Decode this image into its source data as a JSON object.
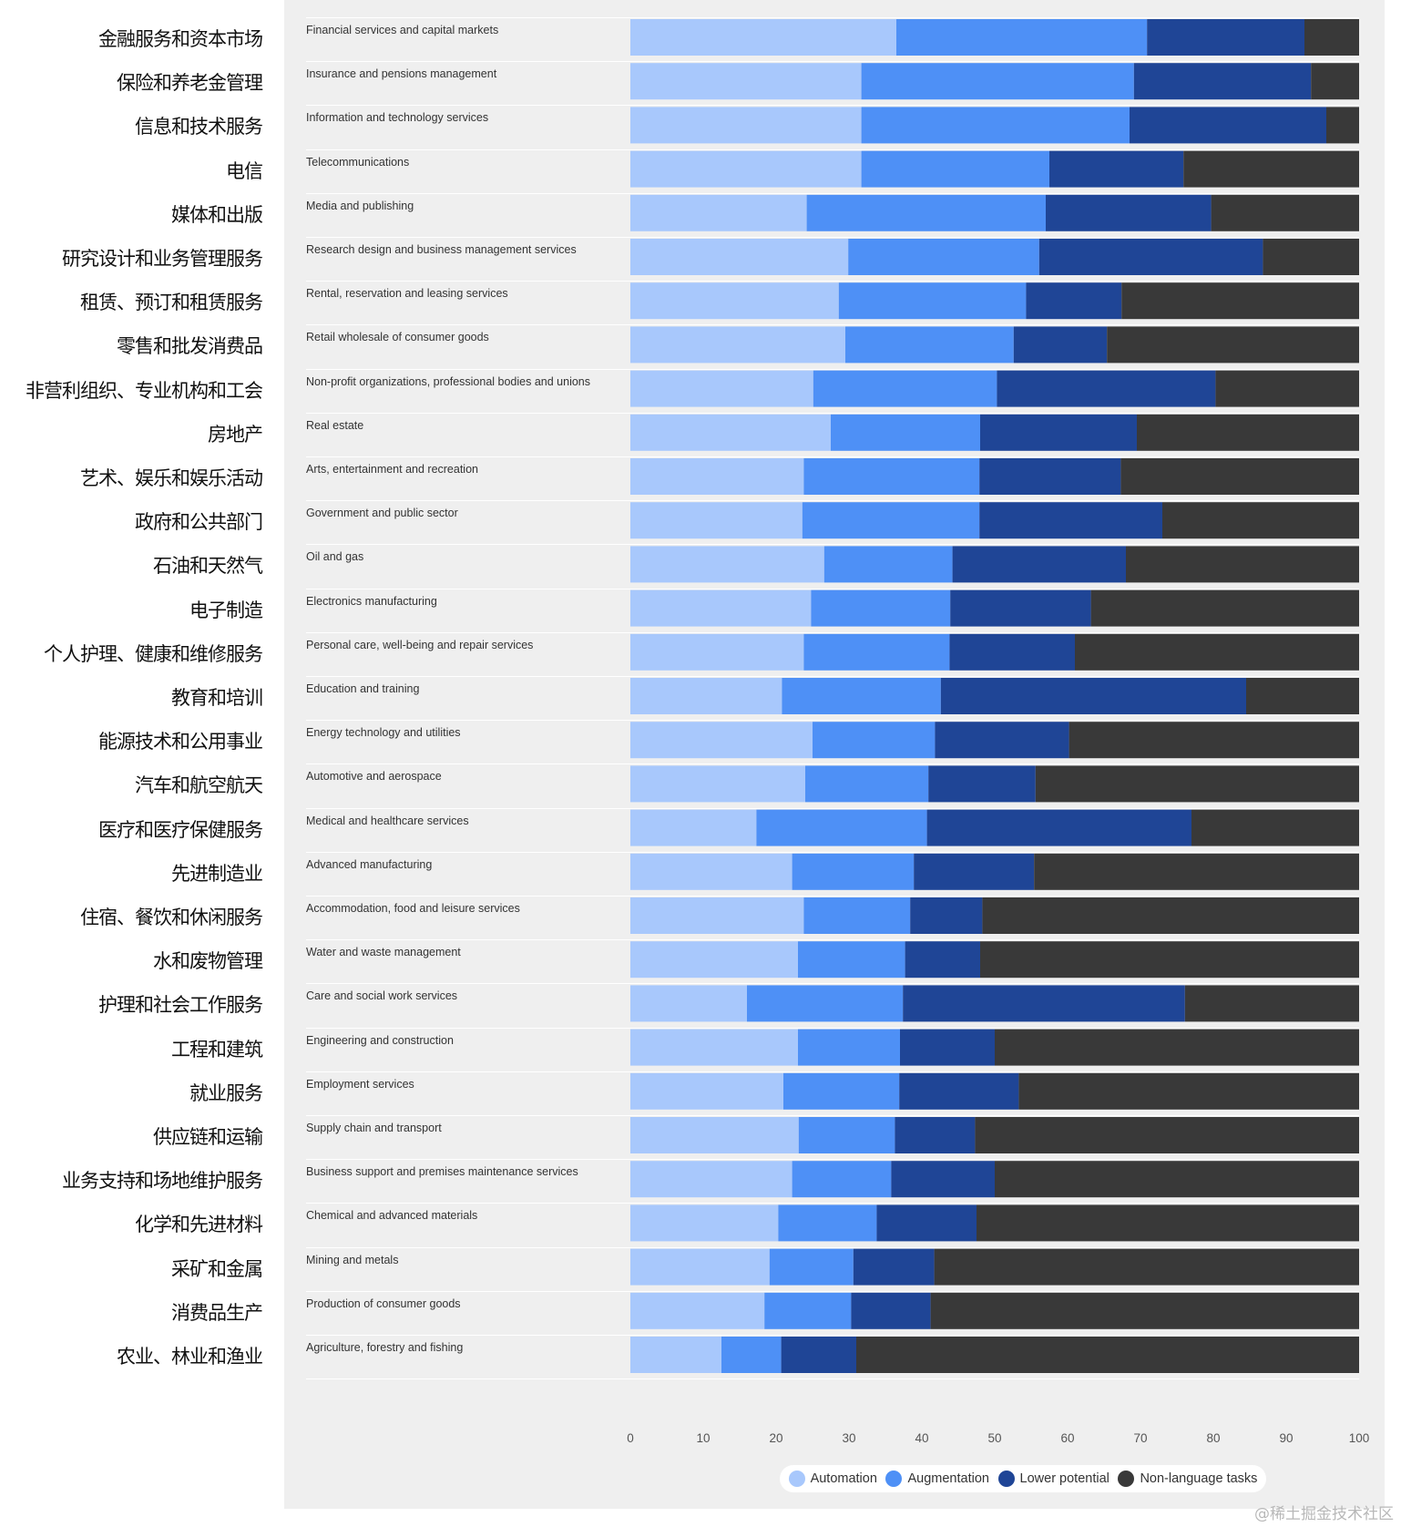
{
  "chart_data": {
    "type": "bar",
    "orientation": "horizontal",
    "stacked": true,
    "xlim": [
      0,
      100
    ],
    "xticks": [
      0,
      10,
      20,
      30,
      40,
      50,
      60,
      70,
      80,
      90,
      100
    ],
    "categories_zh": [
      "金融服务和资本市场",
      "保险和养老金管理",
      "信息和技术服务",
      "电信",
      "媒体和出版",
      "研究设计和业务管理服务",
      "租赁、预订和租赁服务",
      "零售和批发消费品",
      "非营利组织、专业机构和工会",
      "房地产",
      "艺术、娱乐和娱乐活动",
      "政府和公共部门",
      "石油和天然气",
      "电子制造",
      "个人护理、健康和维修服务",
      "教育和培训",
      "能源技术和公用事业",
      "汽车和航空航天",
      "医疗和医疗保健服务",
      "先进制造业",
      "住宿、餐饮和休闲服务",
      "水和废物管理",
      "护理和社会工作服务",
      "工程和建筑",
      "就业服务",
      "供应链和运输",
      "业务支持和场地维护服务",
      "化学和先进材料",
      "采矿和金属",
      "消费品生产",
      "农业、林业和渔业"
    ],
    "categories": [
      "Financial services and capital markets",
      "Insurance and pensions management",
      "Information and technology services",
      "Telecommunications",
      "Media and publishing",
      "Research design and business management services",
      "Rental, reservation and leasing services",
      "Retail wholesale of consumer goods",
      "Non-profit organizations, professional bodies and unions",
      "Real estate",
      "Arts, entertainment and recreation",
      "Government and public sector",
      "Oil and gas",
      "Electronics manufacturing",
      "Personal care, well-being and repair services",
      "Education and training",
      "Energy technology and utilities",
      "Automotive and aerospace",
      "Medical and healthcare services",
      "Advanced manufacturing",
      "Accommodation, food and leisure services",
      "Water and waste management",
      "Care and social work services",
      "Engineering and construction",
      "Employment services",
      "Supply chain and transport",
      "Business support and premises maintenance services",
      "Chemical and advanced materials",
      "Mining and metals",
      "Production of consumer goods",
      "Agriculture, forestry and fishing"
    ],
    "series": [
      {
        "name": "Automation",
        "color": "#a8c8fc",
        "values": [
          36.5,
          31.7,
          31.7,
          31.7,
          24.2,
          29.9,
          28.6,
          29.5,
          25.1,
          27.5,
          23.8,
          23.6,
          26.6,
          24.8,
          23.8,
          20.8,
          25.0,
          24.0,
          17.3,
          22.2,
          23.8,
          23.0,
          16.0,
          23.0,
          21.0,
          23.1,
          22.2,
          20.3,
          19.1,
          18.4,
          12.5
        ]
      },
      {
        "name": "Augmentation",
        "color": "#4e90f6",
        "values": [
          34.4,
          37.4,
          36.8,
          25.8,
          32.8,
          26.2,
          25.7,
          23.1,
          25.2,
          20.5,
          24.1,
          24.3,
          17.6,
          19.1,
          20.0,
          21.8,
          16.8,
          16.9,
          23.4,
          16.7,
          14.6,
          14.7,
          21.4,
          14.0,
          15.9,
          13.2,
          13.6,
          13.5,
          11.5,
          11.9,
          8.2
        ]
      },
      {
        "name": "Lower potential",
        "color": "#1f4596",
        "values": [
          21.6,
          24.3,
          27.0,
          18.4,
          22.7,
          30.7,
          13.1,
          12.8,
          30.0,
          21.5,
          19.4,
          25.1,
          23.8,
          19.3,
          17.2,
          41.9,
          18.4,
          14.7,
          36.3,
          16.5,
          9.9,
          10.3,
          38.7,
          13.0,
          16.4,
          11.0,
          14.2,
          13.7,
          11.1,
          10.9,
          10.3
        ]
      },
      {
        "name": "Non-language tasks",
        "color": "#393939",
        "values": [
          7.5,
          6.6,
          4.5,
          24.1,
          20.3,
          13.2,
          32.6,
          34.6,
          19.7,
          30.5,
          32.7,
          27.0,
          32.0,
          36.8,
          39.0,
          15.5,
          39.8,
          44.4,
          23.0,
          44.6,
          51.7,
          52.0,
          23.9,
          50.0,
          46.7,
          52.7,
          50.0,
          52.5,
          58.3,
          58.8,
          69.0
        ]
      }
    ]
  },
  "legend": {
    "items": [
      {
        "label": "Automation",
        "color": "#a8c8fc"
      },
      {
        "label": "Augmentation",
        "color": "#4e90f6"
      },
      {
        "label": "Lower potential",
        "color": "#1f4596"
      },
      {
        "label": "Non-language tasks",
        "color": "#393939"
      }
    ]
  },
  "watermark": "@稀土掘金技术社区"
}
